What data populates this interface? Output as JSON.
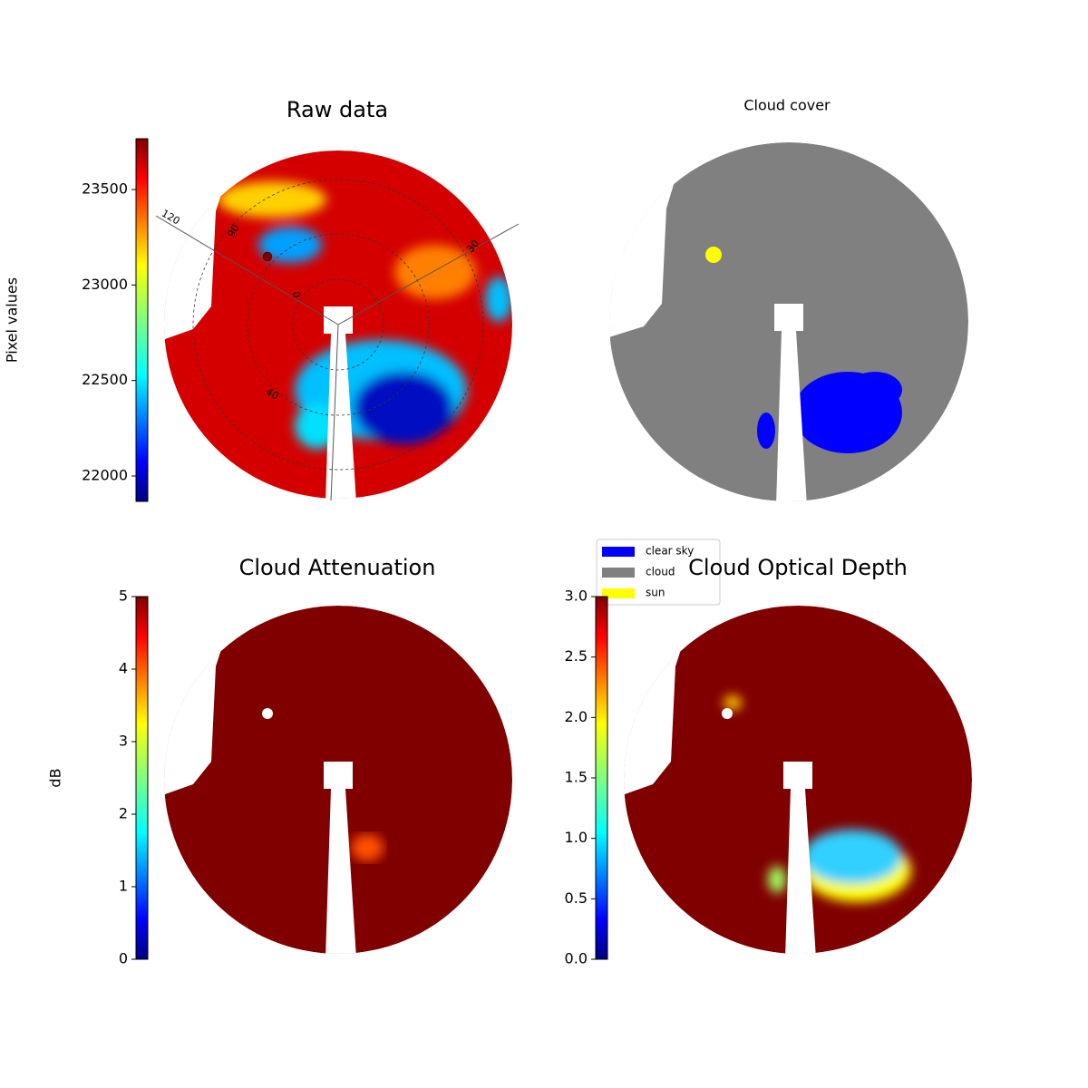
{
  "chart_data": [
    {
      "type": "image",
      "title": "Raw data",
      "colorbar_label": "Pixel values",
      "colormap": "jet",
      "ylim": [
        21867,
        23766
      ],
      "yticks": [
        22000,
        22500,
        23000,
        23500
      ],
      "annotations": [
        "120",
        "90",
        "30",
        "0",
        "40"
      ]
    },
    {
      "type": "classes",
      "title": "Cloud cover",
      "series": [
        {
          "name": "clear sky",
          "color": "#0000ff"
        },
        {
          "name": "cloud",
          "color": "#808080"
        },
        {
          "name": "sun",
          "color": "#ffff00"
        }
      ]
    },
    {
      "type": "image",
      "title": "Cloud Attenuation",
      "colorbar_label": "dB",
      "colormap": "jet",
      "ylim": [
        0,
        5
      ],
      "yticks": [
        0,
        1,
        2,
        3,
        4,
        5
      ]
    },
    {
      "type": "image",
      "title": "Cloud Optical Depth",
      "colormap": "jet",
      "ylim": [
        0,
        3
      ],
      "yticks": [
        {
          "value": 0,
          "label": "0.0"
        },
        {
          "value": 0.5,
          "label": "0.5"
        },
        {
          "value": 1,
          "label": "1.0"
        },
        {
          "value": 1.5,
          "label": "1.5"
        },
        {
          "value": 2,
          "label": "2.0"
        },
        {
          "value": 2.5,
          "label": "2.5"
        },
        {
          "value": 3,
          "label": "3.0"
        }
      ]
    }
  ]
}
